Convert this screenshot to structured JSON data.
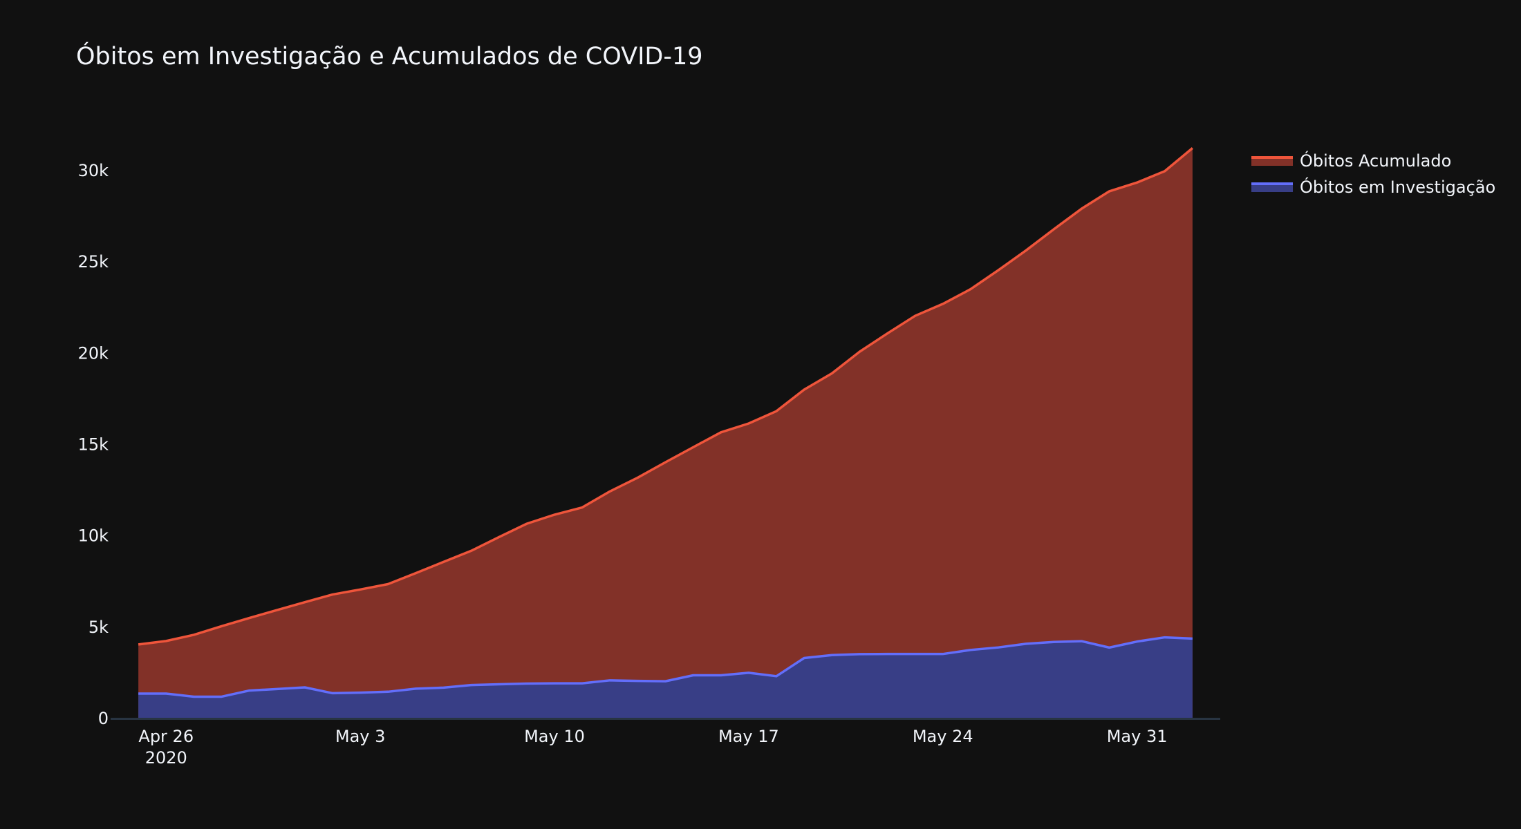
{
  "chart_data": {
    "type": "area",
    "title": "Óbitos em Investigação e Acumulados de COVID-19",
    "xlabel": "",
    "ylabel": "",
    "x": [
      "2020-04-25",
      "2020-04-26",
      "2020-04-27",
      "2020-04-28",
      "2020-04-29",
      "2020-04-30",
      "2020-05-01",
      "2020-05-02",
      "2020-05-03",
      "2020-05-04",
      "2020-05-05",
      "2020-05-06",
      "2020-05-07",
      "2020-05-08",
      "2020-05-09",
      "2020-05-10",
      "2020-05-11",
      "2020-05-12",
      "2020-05-13",
      "2020-05-14",
      "2020-05-15",
      "2020-05-16",
      "2020-05-17",
      "2020-05-18",
      "2020-05-19",
      "2020-05-20",
      "2020-05-21",
      "2020-05-22",
      "2020-05-23",
      "2020-05-24",
      "2020-05-25",
      "2020-05-26",
      "2020-05-27",
      "2020-05-28",
      "2020-05-29",
      "2020-05-30",
      "2020-05-31",
      "2020-06-01",
      "2020-06-02"
    ],
    "x_ticks": [
      {
        "date": "2020-04-26",
        "label": "Apr 26",
        "sublabel": "2020"
      },
      {
        "date": "2020-05-03",
        "label": "May 3",
        "sublabel": ""
      },
      {
        "date": "2020-05-10",
        "label": "May 10",
        "sublabel": ""
      },
      {
        "date": "2020-05-17",
        "label": "May 17",
        "sublabel": ""
      },
      {
        "date": "2020-05-24",
        "label": "May 24",
        "sublabel": ""
      },
      {
        "date": "2020-05-31",
        "label": "May 31",
        "sublabel": ""
      }
    ],
    "xlim": [
      "2020-04-24",
      "2020-06-03"
    ],
    "y_ticks": [
      0,
      5000,
      10000,
      15000,
      20000,
      25000,
      30000
    ],
    "y_tick_labels": [
      "0",
      "5k",
      "10k",
      "15k",
      "20k",
      "25k",
      "30k"
    ],
    "ylim": [
      0,
      32500
    ],
    "grid": false,
    "legend_position": "top-right",
    "series": [
      {
        "name": "Óbitos Acumulado",
        "color": "#EF553B",
        "fill": "#823128",
        "values": [
          4016,
          4205,
          4543,
          5017,
          5466,
          5901,
          6329,
          6750,
          7025,
          7321,
          7921,
          8536,
          9146,
          9897,
          10627,
          11123,
          11519,
          12400,
          13149,
          13993,
          14817,
          15633,
          16118,
          16792,
          17971,
          18859,
          20047,
          21048,
          22013,
          22666,
          23473,
          24512,
          25598,
          26754,
          27878,
          28834,
          29314,
          29937,
          31199
        ]
      },
      {
        "name": "Óbitos em Investigação",
        "color": "#636EFA",
        "fill": "#383E86",
        "values": [
          1326,
          1326,
          1156,
          1156,
          1492,
          1573,
          1664,
          1346,
          1376,
          1426,
          1593,
          1649,
          1793,
          1836,
          1873,
          1887,
          1887,
          2050,
          2021,
          2000,
          2326,
          2326,
          2465,
          2277,
          3272,
          3432,
          3484,
          3493,
          3493,
          3493,
          3715,
          3852,
          4053,
          4154,
          4197,
          3845,
          4175,
          4405,
          4337
        ]
      }
    ]
  }
}
